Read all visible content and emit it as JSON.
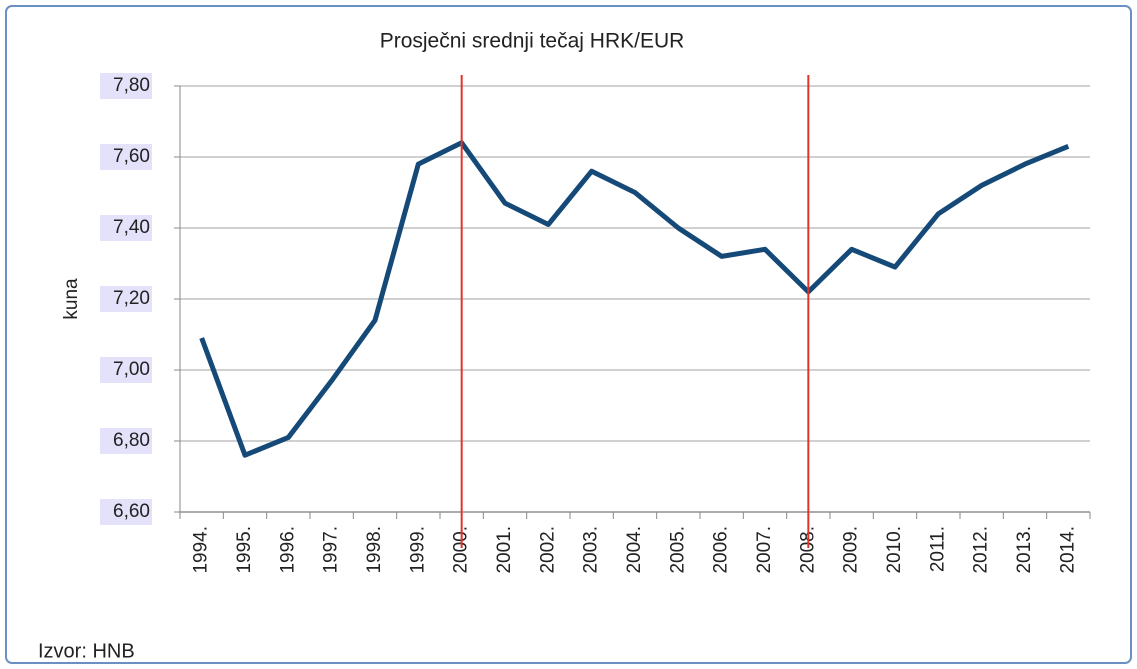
{
  "chart_data": {
    "type": "line",
    "title": "Prosječni srednji tečaj HRK/EUR",
    "y_label": "kuna",
    "source": "Izvor: HNB",
    "categories": [
      "1994.",
      "1995.",
      "1996.",
      "1997.",
      "1998.",
      "1999.",
      "2000.",
      "2001.",
      "2002.",
      "2003.",
      "2004.",
      "2005.",
      "2006.",
      "2007.",
      "2008.",
      "2009.",
      "2010.",
      "2011.",
      "2012.",
      "2013.",
      "2014."
    ],
    "series": [
      {
        "name": "HRK/EUR",
        "color": "#154a78",
        "values": [
          7.09,
          6.76,
          6.81,
          6.97,
          7.14,
          7.58,
          7.64,
          7.47,
          7.41,
          7.56,
          7.5,
          7.4,
          7.32,
          7.34,
          7.22,
          7.34,
          7.29,
          7.44,
          7.52,
          7.58,
          7.63
        ]
      }
    ],
    "ylim": [
      6.6,
      7.8
    ],
    "yticks": [
      {
        "value": 6.6,
        "label": "6,60"
      },
      {
        "value": 6.8,
        "label": "6,80"
      },
      {
        "value": 7.0,
        "label": "7,00"
      },
      {
        "value": 7.2,
        "label": "7,20"
      },
      {
        "value": 7.4,
        "label": "7,40"
      },
      {
        "value": 7.6,
        "label": "7,60"
      },
      {
        "value": 7.8,
        "label": "7,80"
      }
    ],
    "grid": true,
    "highlight_category_indices": [
      6,
      14
    ],
    "highlight_color": "#e0342a"
  }
}
